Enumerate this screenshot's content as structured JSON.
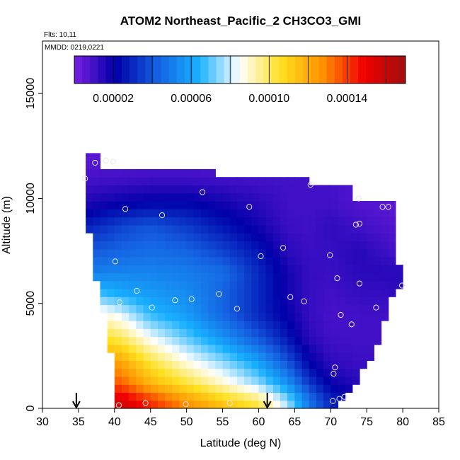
{
  "chart_data": {
    "type": "heatmap",
    "title": "ATOM2 Northeast_Pacific_2 CH3CO3_GMI",
    "flights_note": "Flts: 10,11",
    "mmdd_note": "MMDD: 0219,0221",
    "xlabel": "Latitude (deg N)",
    "ylabel": "Altitude (m)",
    "xlim": [
      30,
      85
    ],
    "ylim": [
      0,
      17500
    ],
    "x_ticks": [
      30,
      35,
      40,
      45,
      50,
      55,
      60,
      65,
      70,
      75,
      80,
      85
    ],
    "x_tick_labels": [
      "30",
      "35",
      "40",
      "45",
      "50",
      "55",
      "60",
      "65",
      "70",
      "75",
      "80",
      "85"
    ],
    "y_ticks": [
      0,
      5000,
      10000,
      15000
    ],
    "y_tick_labels": [
      "0",
      "5000",
      "10000",
      "15000"
    ],
    "grid": false,
    "colorbar": {
      "placement": "top-inside",
      "range": [
        0,
        0.00017
      ],
      "tick_values": [
        2e-05,
        6e-05,
        0.0001,
        0.00014
      ],
      "tick_labels": [
        "0.00002",
        "0.00006",
        "0.00010",
        "0.00014"
      ],
      "stops": [
        "#7a1fe0",
        "#0000a8",
        "#1560e0",
        "#18b0ff",
        "#ffffff",
        "#ffe020",
        "#ff9000",
        "#f00000",
        "#a01010"
      ]
    },
    "markers": [
      {
        "label": "arrow",
        "x": 34.7,
        "y": 0
      },
      {
        "label": "arrow",
        "x": 61.2,
        "y": 0
      }
    ],
    "footprint_left_edge": [
      [
        40.3,
        0
      ],
      [
        40.0,
        1000
      ],
      [
        39.5,
        2500
      ],
      [
        39.0,
        4000
      ],
      [
        38.0,
        5500
      ],
      [
        37.0,
        7000
      ],
      [
        36.5,
        8500
      ],
      [
        36.0,
        10000
      ],
      [
        35.8,
        11000
      ],
      [
        36.5,
        11800
      ],
      [
        36.5,
        12000
      ]
    ],
    "footprint_right_edge": [
      [
        38.0,
        12000
      ],
      [
        38.0,
        11500
      ],
      [
        54.0,
        11500
      ],
      [
        54.0,
        10900
      ],
      [
        67.0,
        10900
      ],
      [
        67.0,
        10600
      ],
      [
        73.0,
        10600
      ],
      [
        73.0,
        9800
      ],
      [
        79.0,
        9800
      ],
      [
        79.0,
        8500
      ],
      [
        79.5,
        7000
      ],
      [
        80.0,
        6000
      ],
      [
        80.0,
        5600
      ],
      [
        79.0,
        5600
      ],
      [
        78.0,
        4800
      ],
      [
        77.5,
        4000
      ],
      [
        76.5,
        3000
      ],
      [
        75.5,
        2200
      ],
      [
        74.0,
        1500
      ],
      [
        72.5,
        800
      ],
      [
        71.5,
        200
      ],
      [
        71.5,
        0
      ]
    ],
    "field_nodes": {
      "lat": [
        36,
        41,
        45,
        50,
        55,
        60,
        64,
        67,
        70,
        74,
        80
      ],
      "alt": [
        0,
        500,
        1200,
        2200,
        3400,
        4500,
        5500,
        6500,
        7500,
        8700,
        9800,
        10800,
        11800
      ],
      "values": [
        [
          0.00016,
          0.00016,
          0.000145,
          0.00013,
          0.000118,
          0.000106,
          8e-05,
          5e-05,
          3e-05,
          2e-05,
          2e-05
        ],
        [
          0.000155,
          0.000152,
          0.000138,
          0.000122,
          0.000108,
          9.6e-05,
          7.2e-05,
          4.6e-05,
          2.8e-05,
          1.8e-05,
          1.8e-05
        ],
        [
          0.00014,
          0.000135,
          0.000118,
          0.000104,
          9e-05,
          7.5e-05,
          5.6e-05,
          3.4e-05,
          2e-05,
          1.4e-05,
          1.4e-05
        ],
        [
          0.000128,
          0.000122,
          0.000104,
          8.8e-05,
          7.5e-05,
          6e-05,
          4e-05,
          2.2e-05,
          1.3e-05,
          1.1e-05,
          1.1e-05
        ],
        [
          0.00011,
          0.0001,
          8.4e-05,
          7e-05,
          5.6e-05,
          4e-05,
          2.6e-05,
          1.4e-05,
          1e-05,
          1e-05,
          1e-05
        ],
        [
          9.4e-05,
          8.2e-05,
          6.6e-05,
          5.8e-05,
          4.4e-05,
          3e-05,
          2e-05,
          1.2e-05,
          9e-06,
          1e-05,
          1e-05
        ],
        [
          7e-05,
          6.2e-05,
          5.8e-05,
          5.4e-05,
          4.4e-05,
          3e-05,
          1.8e-05,
          1.2e-05,
          1e-05,
          1.2e-05,
          1.3e-05
        ],
        [
          5e-05,
          5.2e-05,
          5.2e-05,
          5e-05,
          4.6e-05,
          3e-05,
          1.8e-05,
          1.2e-05,
          1.1e-05,
          1.4e-05,
          1.5e-05
        ],
        [
          4e-05,
          4.4e-05,
          4.6e-05,
          4.4e-05,
          3.6e-05,
          2.6e-05,
          1.4e-05,
          1.1e-05,
          1.2e-05,
          1.5e-05,
          8e-06
        ],
        [
          2.8e-05,
          3.6e-05,
          4e-05,
          3.4e-05,
          2.6e-05,
          1.8e-05,
          1.1e-05,
          1e-05,
          1.3e-05,
          1e-05,
          6e-06
        ],
        [
          1.6e-05,
          2e-05,
          2.2e-05,
          2.2e-05,
          1.8e-05,
          1.4e-05,
          1e-05,
          1e-05,
          1e-05,
          7e-06,
          5e-06
        ],
        [
          1e-05,
          1.1e-05,
          1.2e-05,
          1.2e-05,
          1.1e-05,
          1e-05,
          1e-05,
          1e-05,
          1e-05,
          7e-06,
          5e-06
        ],
        [
          6e-06,
          6e-06,
          6e-06,
          6e-06,
          6e-06,
          6e-06,
          6e-06,
          6e-06,
          6e-06,
          6e-06,
          6e-06
        ]
      ]
    },
    "cell_size": {
      "lat": 1.0,
      "alt": 380
    },
    "sample_points": [
      [
        37.3,
        11700
      ],
      [
        38.8,
        11800
      ],
      [
        39.8,
        11750
      ],
      [
        35.9,
        10950
      ],
      [
        52.2,
        10300
      ],
      [
        67.2,
        10650
      ],
      [
        41.5,
        9500
      ],
      [
        46.6,
        9200
      ],
      [
        58.7,
        9600
      ],
      [
        73.9,
        10000
      ],
      [
        77.2,
        9600
      ],
      [
        78.0,
        9600
      ],
      [
        73.5,
        8750
      ],
      [
        74.0,
        8800
      ],
      [
        63.4,
        7650
      ],
      [
        60.3,
        7250
      ],
      [
        69.9,
        7300
      ],
      [
        40.1,
        7000
      ],
      [
        70.9,
        6200
      ],
      [
        74.0,
        5950
      ],
      [
        79.9,
        5850
      ],
      [
        43.1,
        5600
      ],
      [
        54.5,
        5450
      ],
      [
        40.7,
        5050
      ],
      [
        48.4,
        5150
      ],
      [
        50.7,
        5200
      ],
      [
        64.4,
        5300
      ],
      [
        66.3,
        5100
      ],
      [
        45.2,
        4800
      ],
      [
        57.0,
        4750
      ],
      [
        76.3,
        4800
      ],
      [
        71.4,
        4450
      ],
      [
        72.9,
        4000
      ],
      [
        70.6,
        1950
      ],
      [
        70.4,
        1650
      ],
      [
        71.2,
        450
      ],
      [
        71.9,
        550
      ],
      [
        70.3,
        350
      ],
      [
        40.6,
        150
      ],
      [
        44.3,
        250
      ],
      [
        49.9,
        200
      ],
      [
        56.0,
        250
      ]
    ]
  }
}
